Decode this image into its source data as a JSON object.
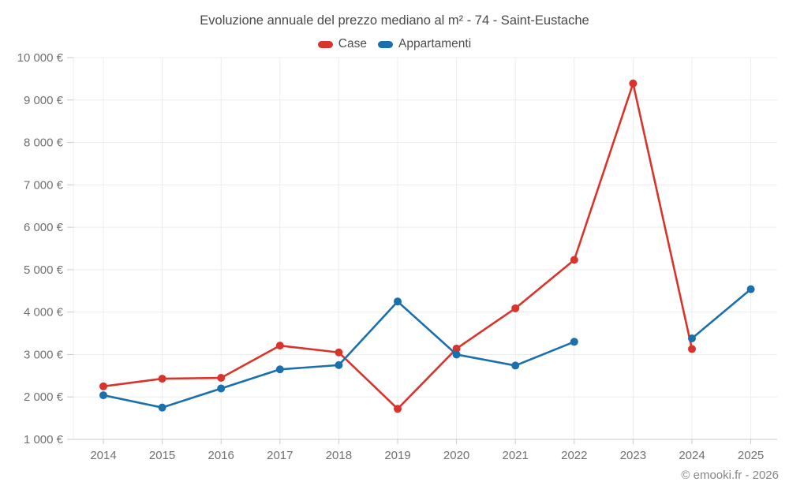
{
  "chart": {
    "title": "Evoluzione annuale del prezzo mediano al m² - 74 - Saint-Eustache"
  },
  "footer": {
    "copyright": "© emooki.fr - 2026"
  },
  "colors": {
    "case_red": "#d8342c",
    "appartamenti_blue": "#1a6fad",
    "grid_line": "#ececec",
    "axis_line": "#c9c9c9",
    "axis_text": "#717171"
  },
  "chart_data": {
    "type": "line",
    "title": "Evoluzione annuale del prezzo mediano al m² - 74 - Saint-Eustache",
    "categories": [
      "2014",
      "2015",
      "2016",
      "2017",
      "2018",
      "2019",
      "2020",
      "2021",
      "2022",
      "2023",
      "2024",
      "2025"
    ],
    "series": [
      {
        "name": "Case",
        "color": "#d8342c",
        "values": [
          2250,
          2430,
          2450,
          3210,
          3050,
          1720,
          3140,
          4090,
          5230,
          9390,
          3130,
          null
        ]
      },
      {
        "name": "Appartamenti",
        "color": "#1a6fad",
        "values": [
          2040,
          1750,
          2200,
          2650,
          2750,
          4250,
          3000,
          2740,
          3300,
          null,
          3380,
          4540
        ]
      }
    ],
    "xlabel": "",
    "ylabel": "",
    "y_axis": {
      "min": 1000,
      "max": 10000,
      "step": 1000,
      "tick_labels": [
        "1 000 €",
        "2 000 €",
        "3 000 €",
        "4 000 €",
        "5 000 €",
        "6 000 €",
        "7 000 €",
        "8 000 €",
        "9 000 €",
        "10 000 €"
      ]
    },
    "grid": true,
    "legend_position": "top-center"
  }
}
